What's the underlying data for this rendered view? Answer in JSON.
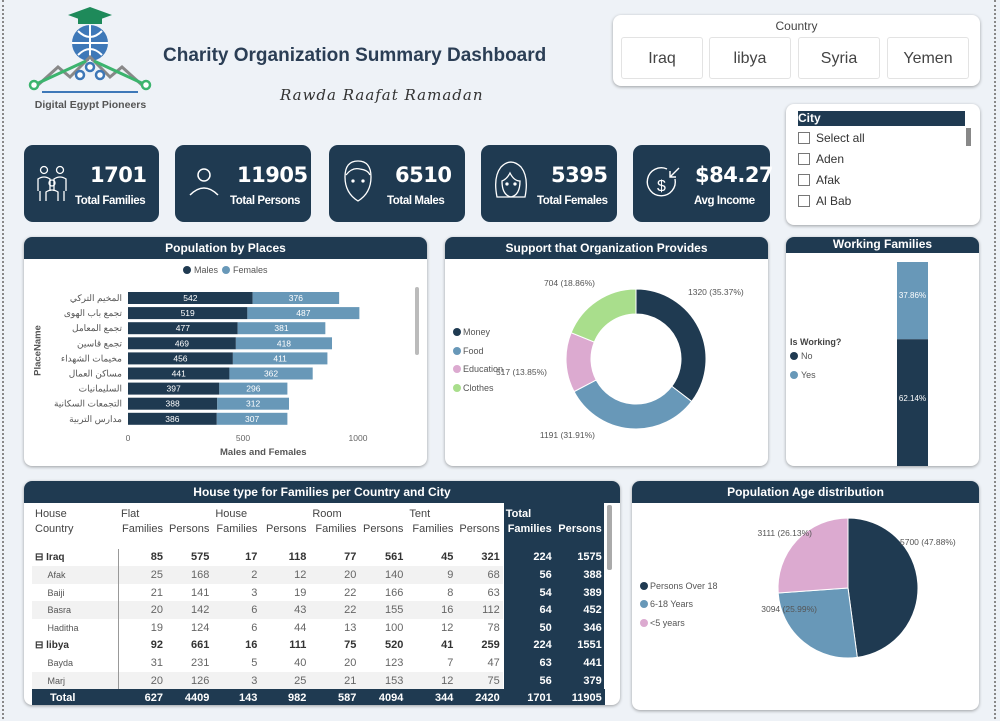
{
  "header": {
    "title": "Charity Organization Summary Dashboard",
    "author": "Rawda Raafat Ramadan",
    "logo_text": "Digital Egypt Pioneers"
  },
  "country_slicer": {
    "title": "Country",
    "options": [
      "Iraq",
      "libya",
      "Syria",
      "Yemen"
    ]
  },
  "city_slicer": {
    "title": "City",
    "items": [
      "Select all",
      "Aden",
      "Afak",
      "Al Bab"
    ]
  },
  "kpis": [
    {
      "value": "1701",
      "label": "Total Families",
      "icon": "family-icon"
    },
    {
      "value": "11905",
      "label": "Total Persons",
      "icon": "person-icon"
    },
    {
      "value": "6510",
      "label": "Total Males",
      "icon": "male-face-icon"
    },
    {
      "value": "5395",
      "label": "Total Females",
      "icon": "female-face-icon"
    },
    {
      "value": "$84.27",
      "label": "Avg Income",
      "icon": "income-icon"
    }
  ],
  "colors": {
    "navy": "#1f3a51",
    "blue": "#6898b8",
    "pink": "#dcaad0",
    "green": "#a9de8c"
  },
  "chart_data": [
    {
      "type": "bar",
      "title": "Population by Places",
      "stacked": true,
      "orientation": "horizontal",
      "categories": [
        "المخيم التركي",
        "تجمع باب الهوى",
        "تجمع المعامل",
        "تجمع قاسين",
        "مخيمات الشهداء",
        "مساكن العمال",
        "السليمانيات",
        "التجمعات السكانية",
        "مدارس التربية"
      ],
      "series": [
        {
          "name": "Males",
          "values": [
            542,
            519,
            477,
            469,
            456,
            441,
            397,
            388,
            386
          ]
        },
        {
          "name": "Females",
          "values": [
            376,
            487,
            381,
            418,
            411,
            362,
            296,
            312,
            307
          ]
        }
      ],
      "xlabel": "Males and Females",
      "ylabel": "PlaceName",
      "xlim": [
        0,
        1000
      ],
      "xticks": [
        "0",
        "500",
        "1000"
      ],
      "legend": "top"
    },
    {
      "type": "pie",
      "donut": true,
      "title": "Support that Organization Provides",
      "slices": [
        {
          "name": "Money",
          "value": 1320,
          "label": "1320 (35.37%)"
        },
        {
          "name": "Food",
          "value": 1191,
          "label": "1191 (31.91%)"
        },
        {
          "name": "Education",
          "value": 517,
          "label": "517 (13.85%)"
        },
        {
          "name": "Clothes",
          "value": 704,
          "label": "704 (18.86%)"
        }
      ],
      "legend": "left"
    },
    {
      "type": "bar",
      "stacked": true,
      "percent": true,
      "title": "Working Families",
      "legend_title": "Is Working?",
      "series": [
        {
          "name": "No",
          "value": 62.14,
          "label": "62.14%"
        },
        {
          "name": "Yes",
          "value": 37.86,
          "label": "37.86%"
        }
      ],
      "legend": "left"
    },
    {
      "type": "pie",
      "title": "Population Age distribution",
      "slices": [
        {
          "name": "Persons Over 18",
          "value": 5700,
          "label": "5700 (47.88%)"
        },
        {
          "name": "6-18 Years",
          "value": 3094,
          "label": "3094 (25.99%)"
        },
        {
          "name": "<5 years",
          "value": 3111,
          "label": "3111 (26.13%)"
        }
      ],
      "legend": "left"
    }
  ],
  "table": {
    "title": "House type for Families per Country and City",
    "row_header1": "House",
    "row_header2": "Country",
    "groups": [
      "Flat",
      "House",
      "Room",
      "Tent",
      "Total"
    ],
    "subheaders": [
      "Families",
      "Persons"
    ],
    "rows": [
      {
        "level": 0,
        "label": "Iraq",
        "values": [
          85,
          575,
          17,
          118,
          77,
          561,
          45,
          321,
          224,
          1575
        ]
      },
      {
        "level": 1,
        "label": "Afak",
        "values": [
          25,
          168,
          2,
          12,
          20,
          140,
          9,
          68,
          56,
          388
        ]
      },
      {
        "level": 1,
        "label": "Baiji",
        "values": [
          21,
          141,
          3,
          19,
          22,
          166,
          8,
          63,
          54,
          389
        ]
      },
      {
        "level": 1,
        "label": "Basra",
        "values": [
          20,
          142,
          6,
          43,
          22,
          155,
          16,
          112,
          64,
          452
        ]
      },
      {
        "level": 1,
        "label": "Haditha",
        "values": [
          19,
          124,
          6,
          44,
          13,
          100,
          12,
          78,
          50,
          346
        ]
      },
      {
        "level": 0,
        "label": "libya",
        "values": [
          92,
          661,
          16,
          111,
          75,
          520,
          41,
          259,
          224,
          1551
        ]
      },
      {
        "level": 1,
        "label": "Bayda",
        "values": [
          31,
          231,
          5,
          40,
          20,
          123,
          7,
          47,
          63,
          441
        ]
      },
      {
        "level": 1,
        "label": "Marj",
        "values": [
          20,
          126,
          3,
          25,
          21,
          153,
          12,
          75,
          56,
          379
        ]
      }
    ],
    "total": {
      "label": "Total",
      "values": [
        627,
        4409,
        143,
        982,
        587,
        4094,
        344,
        2420,
        1701,
        11905
      ]
    }
  }
}
